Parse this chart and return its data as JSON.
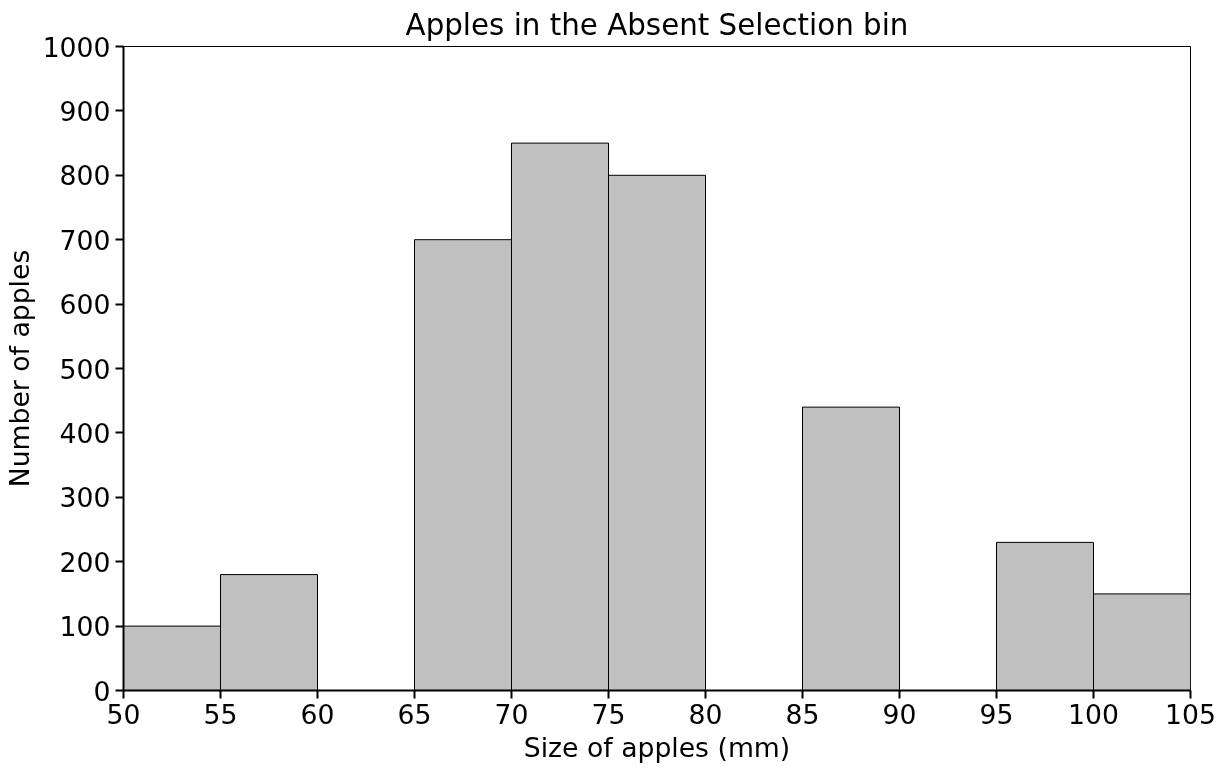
{
  "chart_data": {
    "type": "histogram",
    "title": "Apples in the Absent Selection bin",
    "xlabel": "Size of apples (mm)",
    "ylabel": "Number of apples",
    "bins": [
      50,
      55,
      60,
      65,
      70,
      75,
      80,
      85,
      90,
      95,
      100,
      105
    ],
    "values": [
      100,
      180,
      0,
      700,
      850,
      800,
      0,
      440,
      0,
      230,
      150
    ],
    "color": "#c0c0c0",
    "xlim": [
      50,
      105
    ],
    "xticks": [
      50,
      55,
      60,
      65,
      70,
      75,
      80,
      85,
      90,
      95,
      100,
      105
    ],
    "ylim": [
      0,
      1000
    ],
    "yticks": [
      0,
      100,
      200,
      300,
      400,
      500,
      600,
      700,
      800,
      900,
      1000
    ],
    "grid": false
  }
}
